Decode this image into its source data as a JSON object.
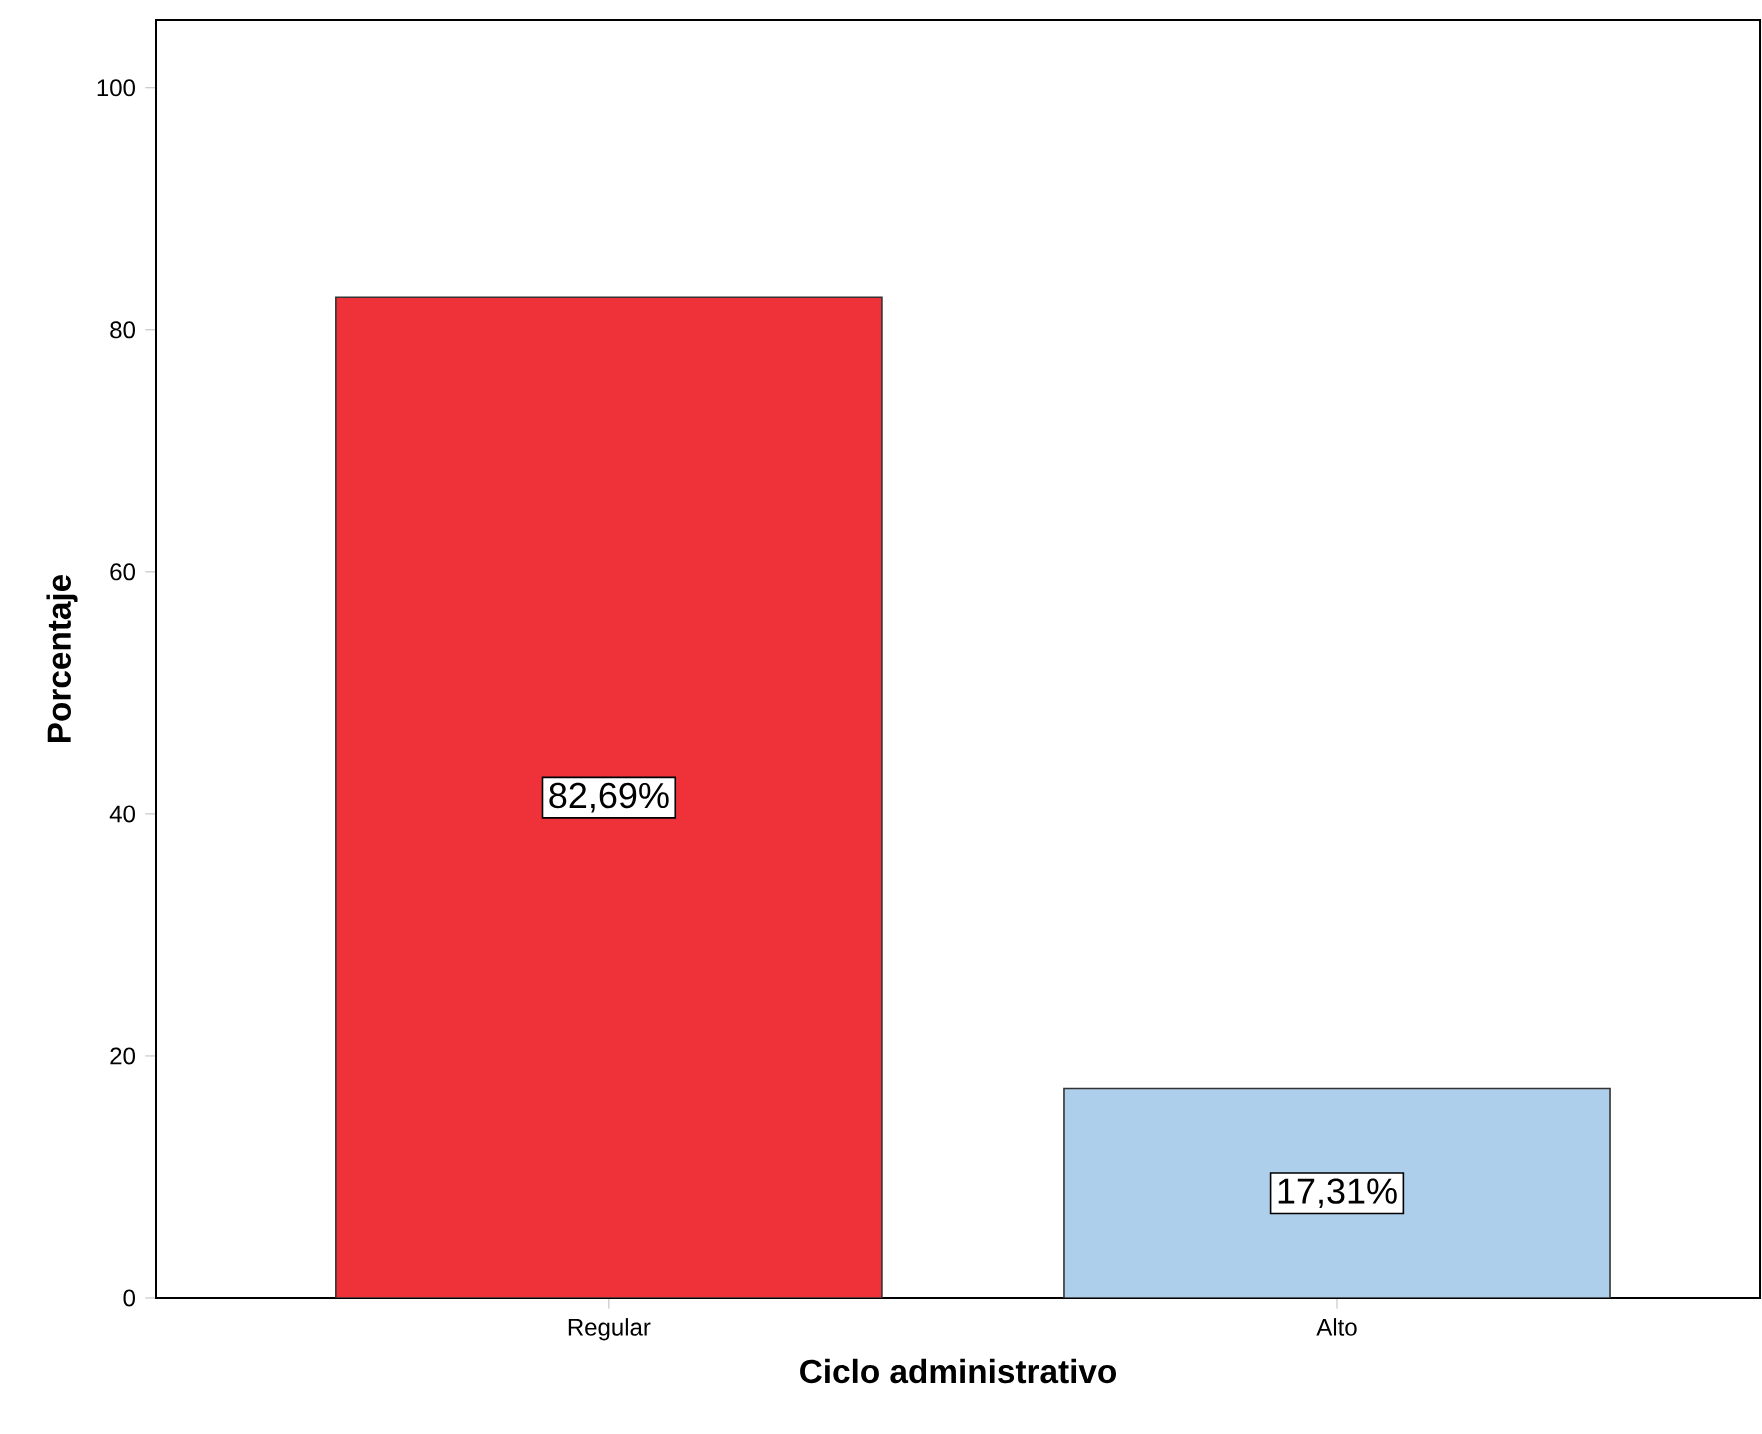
{
  "chart_data": {
    "type": "bar",
    "xlabel": "Ciclo administrativo",
    "ylabel": "Porcentaje",
    "categories": [
      "Regular",
      "Alto"
    ],
    "values": [
      82.69,
      17.31
    ],
    "colors": [
      "#ef3239",
      "#aecfeb"
    ],
    "value_labels": [
      "82,69%",
      "17,31%"
    ],
    "ylim": [
      0,
      105.6
    ],
    "yticks": [
      0,
      20,
      40,
      60,
      80,
      100
    ]
  }
}
